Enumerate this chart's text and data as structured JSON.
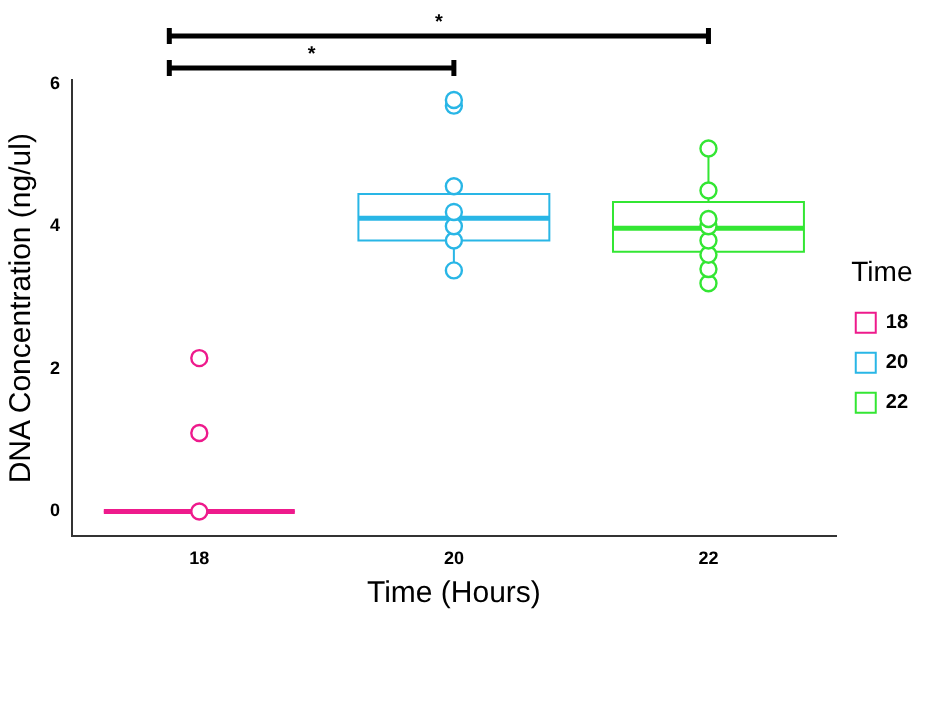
{
  "chart_data": {
    "type": "box",
    "xlabel": "Time (Hours)",
    "ylabel": "DNA Concentration (ng/ul)",
    "legend_title": "Time",
    "legend": "right",
    "grid": false,
    "marker": "circle",
    "categories": [
      "18",
      "20",
      "22"
    ],
    "ylim": [
      -0.35,
      6.05
    ],
    "yticks": [
      0,
      2,
      4,
      6
    ],
    "series": [
      {
        "name": "18",
        "type": "box",
        "color": "#ee1a8c",
        "x": [
          "18"
        ],
        "boxes": [
          {
            "low": 0,
            "q1": 0,
            "median": 0,
            "q3": 0,
            "high": 0
          }
        ]
      },
      {
        "name": "20",
        "type": "box",
        "color": "#29b6e6",
        "x": [
          "20"
        ],
        "boxes": [
          {
            "low": 3.38,
            "q1": 3.8,
            "median": 4.11,
            "q3": 4.45,
            "high": 4.56
          }
        ]
      },
      {
        "name": "22",
        "type": "box",
        "color": "#33e633",
        "x": [
          "22"
        ],
        "boxes": [
          {
            "low": 3.2,
            "q1": 3.64,
            "median": 3.97,
            "q3": 4.34,
            "high": 5.09
          }
        ]
      },
      {
        "type": "scatter",
        "x": [
          "18",
          "18",
          "18",
          "20",
          "20",
          "20",
          "20",
          "20",
          "20",
          "20",
          "22",
          "22",
          "22",
          "22",
          "22",
          "22",
          "22",
          "22"
        ],
        "values": [
          0,
          1.1,
          2.15,
          3.38,
          3.8,
          4.0,
          4.2,
          4.56,
          5.69,
          5.77,
          3.2,
          3.4,
          3.6,
          3.8,
          4.0,
          4.1,
          4.5,
          5.09
        ],
        "colors": [
          "#ee1a8c",
          "#ee1a8c",
          "#ee1a8c",
          "#29b6e6",
          "#29b6e6",
          "#29b6e6",
          "#29b6e6",
          "#29b6e6",
          "#29b6e6",
          "#29b6e6",
          "#33e633",
          "#33e633",
          "#33e633",
          "#33e633",
          "#33e633",
          "#33e633",
          "#33e633",
          "#33e633"
        ]
      }
    ],
    "annotations": [
      "*",
      "*"
    ]
  }
}
